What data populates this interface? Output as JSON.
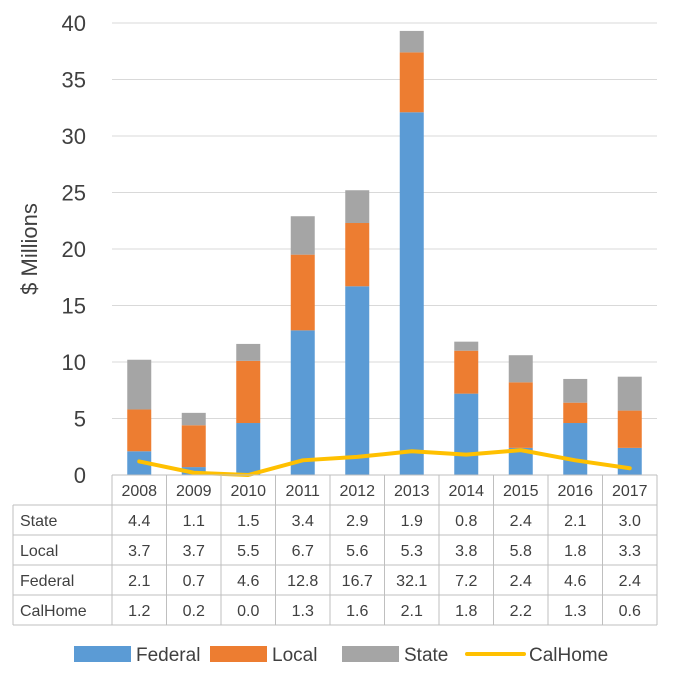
{
  "chart_data": {
    "type": "bar",
    "stacked": true,
    "ylabel": "$ Millions",
    "ylim": [
      0,
      40
    ],
    "yticks": [
      0,
      5,
      10,
      15,
      20,
      25,
      30,
      35,
      40
    ],
    "grid": true,
    "legend_position": "bottom",
    "categories": [
      "2008",
      "2009",
      "2010",
      "2011",
      "2012",
      "2013",
      "2014",
      "2015",
      "2016",
      "2017"
    ],
    "series": [
      {
        "name": "Federal",
        "kind": "bar",
        "color": "#5b9bd5",
        "values": [
          2.1,
          0.7,
          4.6,
          12.8,
          16.7,
          32.1,
          7.2,
          2.4,
          4.6,
          2.4
        ]
      },
      {
        "name": "Local",
        "kind": "bar",
        "color": "#ed7d31",
        "values": [
          3.7,
          3.7,
          5.5,
          6.7,
          5.6,
          5.3,
          3.8,
          5.8,
          1.8,
          3.3
        ]
      },
      {
        "name": "State",
        "kind": "bar",
        "color": "#a5a5a5",
        "values": [
          4.4,
          1.1,
          1.5,
          3.4,
          2.9,
          1.9,
          0.8,
          2.4,
          2.1,
          3.0
        ]
      },
      {
        "name": "CalHome",
        "kind": "line",
        "color": "#ffc000",
        "values": [
          1.2,
          0.2,
          0.0,
          1.3,
          1.6,
          2.1,
          1.8,
          2.2,
          1.3,
          0.6
        ]
      }
    ],
    "table_rows": [
      {
        "label": "State",
        "cells": [
          "4.4",
          "1.1",
          "1.5",
          "3.4",
          "2.9",
          "1.9",
          "0.8",
          "2.4",
          "2.1",
          "3.0"
        ]
      },
      {
        "label": "Local",
        "cells": [
          "3.7",
          "3.7",
          "5.5",
          "6.7",
          "5.6",
          "5.3",
          "3.8",
          "5.8",
          "1.8",
          "3.3"
        ]
      },
      {
        "label": "Federal",
        "cells": [
          "2.1",
          "0.7",
          "4.6",
          "12.8",
          "16.7",
          "32.1",
          "7.2",
          "2.4",
          "4.6",
          "2.4"
        ]
      },
      {
        "label": "CalHome",
        "cells": [
          "1.2",
          "0.2",
          "0.0",
          "1.3",
          "1.6",
          "2.1",
          "1.8",
          "2.2",
          "1.3",
          "0.6"
        ]
      }
    ],
    "legend": [
      "Federal",
      "Local",
      "State",
      "CalHome"
    ]
  }
}
